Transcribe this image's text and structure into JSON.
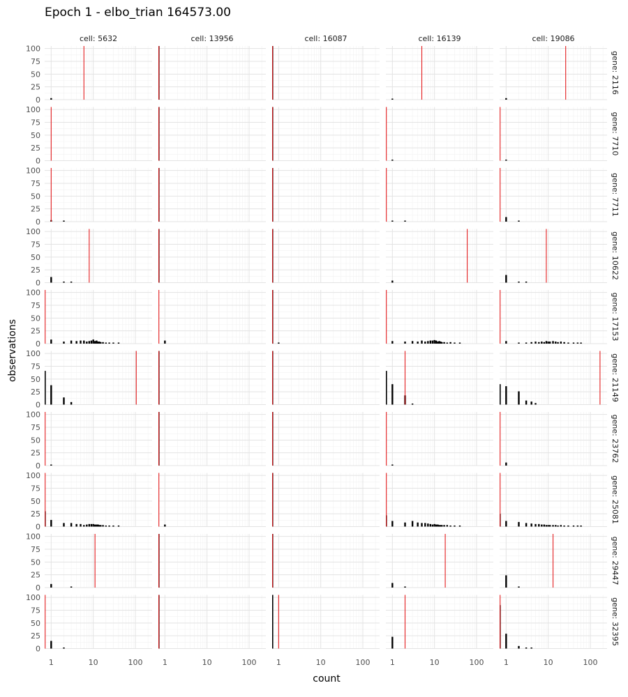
{
  "chart_data": {
    "type": "bar",
    "title": "Epoch 1 - elbo_trian 164573.00",
    "xlabel": "count",
    "ylabel": "observations",
    "x_scale": "log",
    "xlim": [
      0.7,
      250
    ],
    "ylim": [
      0,
      105
    ],
    "x_ticks": [
      1,
      10,
      100
    ],
    "x_tick_labels": [
      "1",
      "10",
      "100"
    ],
    "y_ticks": [
      0,
      25,
      50,
      75,
      100
    ],
    "y_tick_labels": [
      "0",
      "25",
      "50",
      "75",
      "100"
    ],
    "column_facet_labels": [
      "cell: 5632",
      "cell: 13956",
      "cell: 16087",
      "cell: 16139",
      "cell: 19086"
    ],
    "row_facet_labels": [
      "gene: 2116",
      "gene: 7710",
      "gene: 7711",
      "gene: 10622",
      "gene: 17153",
      "gene: 21149",
      "gene: 23762",
      "gene: 25081",
      "gene: 29447",
      "gene: 32395"
    ],
    "series": [
      {
        "name": "observations histogram",
        "color": "#000000"
      },
      {
        "name": "predicted mean",
        "color": "#e31a1c"
      }
    ],
    "panels": [
      [
        {
          "zero": 0,
          "bars": [
            [
              1,
              3
            ]
          ],
          "mean": 6
        },
        {
          "zero": 105,
          "bars": [],
          "mean": 0.7
        },
        {
          "zero": 105,
          "bars": [],
          "mean": 0.7
        },
        {
          "zero": 0,
          "bars": [
            [
              1,
              2
            ]
          ],
          "mean": 5
        },
        {
          "zero": 0,
          "bars": [
            [
              1,
              3
            ]
          ],
          "mean": 26
        }
      ],
      [
        {
          "zero": 0,
          "bars": [],
          "mean": 1
        },
        {
          "zero": 105,
          "bars": [],
          "mean": 0.7
        },
        {
          "zero": 105,
          "bars": [],
          "mean": 0.7
        },
        {
          "zero": 0,
          "bars": [
            [
              1,
              1
            ]
          ],
          "mean": 0.7
        },
        {
          "zero": 0,
          "bars": [
            [
              1,
              1
            ]
          ],
          "mean": 0.7
        }
      ],
      [
        {
          "zero": 0,
          "bars": [
            [
              1,
              3
            ],
            [
              2,
              1
            ]
          ],
          "mean": 1
        },
        {
          "zero": 105,
          "bars": [],
          "mean": 0.7
        },
        {
          "zero": 105,
          "bars": [],
          "mean": 0.7
        },
        {
          "zero": 0,
          "bars": [
            [
              1,
              1
            ],
            [
              2,
              1
            ]
          ],
          "mean": 0.7
        },
        {
          "zero": 0,
          "bars": [
            [
              1,
              9
            ],
            [
              2,
              1
            ]
          ],
          "mean": 0.7
        }
      ],
      [
        {
          "zero": 0,
          "bars": [
            [
              1,
              11
            ],
            [
              2,
              1
            ],
            [
              3,
              1
            ]
          ],
          "mean": 8
        },
        {
          "zero": 105,
          "bars": [],
          "mean": 0.7
        },
        {
          "zero": 105,
          "bars": [],
          "mean": 0.7
        },
        {
          "zero": 0,
          "bars": [
            [
              1,
              4
            ]
          ],
          "mean": 60
        },
        {
          "zero": 0,
          "bars": [
            [
              1,
              15
            ],
            [
              2,
              1
            ],
            [
              3,
              1
            ]
          ],
          "mean": 9
        }
      ],
      [
        {
          "zero": 0,
          "bars": [
            [
              1,
              8
            ],
            [
              2,
              4
            ],
            [
              3,
              6
            ],
            [
              4,
              5
            ],
            [
              5,
              6
            ],
            [
              6,
              6
            ],
            [
              7,
              4
            ],
            [
              8,
              5
            ],
            [
              9,
              6
            ],
            [
              10,
              8
            ],
            [
              11,
              5
            ],
            [
              12,
              6
            ],
            [
              13,
              4
            ],
            [
              14,
              4
            ],
            [
              15,
              3
            ],
            [
              17,
              3
            ],
            [
              20,
              2
            ],
            [
              24,
              2
            ],
            [
              30,
              1
            ],
            [
              40,
              1
            ]
          ],
          "mean": 0.7
        },
        {
          "zero": 0,
          "bars": [
            [
              1,
              6
            ]
          ],
          "mean": 0.7
        },
        {
          "zero": 105,
          "bars": [
            [
              1,
              1
            ]
          ],
          "mean": 0.7
        },
        {
          "zero": 0,
          "bars": [
            [
              1,
              5
            ],
            [
              2,
              4
            ],
            [
              3,
              5
            ],
            [
              4,
              4
            ],
            [
              5,
              6
            ],
            [
              6,
              4
            ],
            [
              7,
              5
            ],
            [
              8,
              6
            ],
            [
              9,
              6
            ],
            [
              10,
              7
            ],
            [
              11,
              6
            ],
            [
              12,
              4
            ],
            [
              13,
              5
            ],
            [
              14,
              4
            ],
            [
              15,
              3
            ],
            [
              17,
              3
            ],
            [
              20,
              2
            ],
            [
              24,
              3
            ],
            [
              30,
              2
            ],
            [
              40,
              1
            ]
          ],
          "mean": 0.7
        },
        {
          "zero": 0,
          "bars": [
            [
              1,
              5
            ],
            [
              2,
              2
            ],
            [
              3,
              2
            ],
            [
              4,
              3
            ],
            [
              5,
              4
            ],
            [
              6,
              3
            ],
            [
              7,
              4
            ],
            [
              8,
              3
            ],
            [
              9,
              5
            ],
            [
              10,
              4
            ],
            [
              11,
              4
            ],
            [
              13,
              5
            ],
            [
              15,
              4
            ],
            [
              17,
              3
            ],
            [
              20,
              4
            ],
            [
              24,
              3
            ],
            [
              30,
              2
            ],
            [
              40,
              2
            ],
            [
              50,
              1
            ],
            [
              60,
              1
            ]
          ],
          "mean": 0.7
        }
      ],
      [
        {
          "zero": 66,
          "bars": [
            [
              1,
              38
            ],
            [
              2,
              14
            ],
            [
              3,
              5
            ]
          ],
          "mean": 105
        },
        {
          "zero": 105,
          "bars": [],
          "mean": 0.7
        },
        {
          "zero": 105,
          "bars": [],
          "mean": 0.7
        },
        {
          "zero": 66,
          "bars": [
            [
              1,
              40
            ],
            [
              2,
              18
            ],
            [
              3,
              1
            ]
          ],
          "mean": 2
        },
        {
          "zero": 40,
          "bars": [
            [
              1,
              36
            ],
            [
              2,
              26
            ],
            [
              3,
              8
            ],
            [
              4,
              6
            ],
            [
              5,
              3
            ]
          ],
          "mean": 170
        }
      ],
      [
        {
          "zero": 0,
          "bars": [
            [
              1,
              1
            ]
          ],
          "mean": 0.7
        },
        {
          "zero": 105,
          "bars": [],
          "mean": 0.7
        },
        {
          "zero": 105,
          "bars": [],
          "mean": 0.7
        },
        {
          "zero": 0,
          "bars": [
            [
              1,
              1
            ]
          ],
          "mean": 0.7
        },
        {
          "zero": 0,
          "bars": [
            [
              1,
              6
            ]
          ],
          "mean": 0.7
        }
      ],
      [
        {
          "zero": 30,
          "bars": [
            [
              1,
              13
            ],
            [
              2,
              7
            ],
            [
              3,
              7
            ],
            [
              4,
              5
            ],
            [
              5,
              5
            ],
            [
              6,
              3
            ],
            [
              7,
              4
            ],
            [
              8,
              5
            ],
            [
              9,
              5
            ],
            [
              10,
              5
            ],
            [
              11,
              4
            ],
            [
              12,
              4
            ],
            [
              13,
              4
            ],
            [
              14,
              3
            ],
            [
              15,
              3
            ],
            [
              17,
              3
            ],
            [
              20,
              2
            ],
            [
              24,
              2
            ],
            [
              30,
              2
            ],
            [
              40,
              2
            ]
          ],
          "mean": 0.7
        },
        {
          "zero": 0,
          "bars": [
            [
              1,
              4
            ]
          ],
          "mean": 0.7
        },
        {
          "zero": 105,
          "bars": [],
          "mean": 0.7
        },
        {
          "zero": 22,
          "bars": [
            [
              1,
              11
            ],
            [
              2,
              8
            ],
            [
              3,
              11
            ],
            [
              4,
              8
            ],
            [
              5,
              7
            ],
            [
              6,
              7
            ],
            [
              7,
              6
            ],
            [
              8,
              5
            ],
            [
              9,
              4
            ],
            [
              10,
              5
            ],
            [
              11,
              4
            ],
            [
              12,
              4
            ],
            [
              13,
              3
            ],
            [
              14,
              3
            ],
            [
              15,
              3
            ],
            [
              17,
              3
            ],
            [
              20,
              3
            ],
            [
              24,
              2
            ],
            [
              30,
              2
            ],
            [
              40,
              2
            ]
          ],
          "mean": 0.7
        },
        {
          "zero": 25,
          "bars": [
            [
              1,
              11
            ],
            [
              2,
              9
            ],
            [
              3,
              7
            ],
            [
              4,
              6
            ],
            [
              5,
              5
            ],
            [
              6,
              5
            ],
            [
              7,
              4
            ],
            [
              8,
              4
            ],
            [
              9,
              3
            ],
            [
              10,
              3
            ],
            [
              11,
              3
            ],
            [
              13,
              3
            ],
            [
              15,
              3
            ],
            [
              17,
              2
            ],
            [
              20,
              3
            ],
            [
              24,
              2
            ],
            [
              30,
              2
            ],
            [
              40,
              2
            ],
            [
              50,
              1
            ],
            [
              60,
              1
            ]
          ],
          "mean": 0.7
        }
      ],
      [
        {
          "zero": 0,
          "bars": [
            [
              1,
              7
            ],
            [
              3,
              1
            ]
          ],
          "mean": 11
        },
        {
          "zero": 105,
          "bars": [],
          "mean": 0.7
        },
        {
          "zero": 105,
          "bars": [],
          "mean": 0.7
        },
        {
          "zero": 0,
          "bars": [
            [
              1,
              9
            ],
            [
              2,
              1
            ]
          ],
          "mean": 18
        },
        {
          "zero": 0,
          "bars": [
            [
              1,
              24
            ],
            [
              2,
              2
            ]
          ],
          "mean": 13
        }
      ],
      [
        {
          "zero": 0,
          "bars": [
            [
              1,
              15
            ],
            [
              2,
              1
            ]
          ],
          "mean": 0.7
        },
        {
          "zero": 105,
          "bars": [],
          "mean": 0.7
        },
        {
          "zero": 105,
          "bars": [],
          "mean": 1
        },
        {
          "zero": 0,
          "bars": [
            [
              1,
              23
            ]
          ],
          "mean": 2
        },
        {
          "zero": 85,
          "bars": [
            [
              1,
              29
            ],
            [
              2,
              5
            ],
            [
              3,
              2
            ],
            [
              4,
              1
            ]
          ],
          "mean": 0.7
        }
      ]
    ]
  }
}
